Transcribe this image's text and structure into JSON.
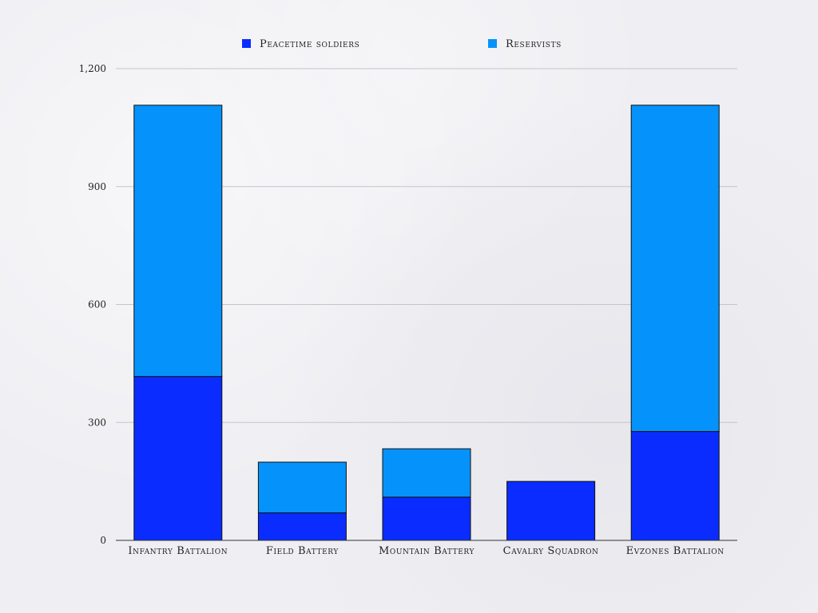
{
  "chart_data": {
    "type": "bar",
    "stacked": true,
    "categories": [
      "Infantry Battalion",
      "Field Battery",
      "Mountain Battery",
      "Cavalry Squadron",
      "Evzones Battalion"
    ],
    "series": [
      {
        "name": "Peacetime soldiers",
        "values": [
          417,
          70,
          110,
          150,
          277
        ],
        "color": "#0a2cff"
      },
      {
        "name": "Reservists",
        "values": [
          690,
          129,
          123,
          0,
          830
        ],
        "color": "#0593fb"
      }
    ],
    "yticks": [
      0,
      300,
      600,
      900,
      1200
    ],
    "ytick_labels": [
      "0",
      "300",
      "600",
      "900",
      "1,200"
    ],
    "ylim": [
      0,
      1200
    ],
    "grid": true,
    "legend_position": "top"
  }
}
